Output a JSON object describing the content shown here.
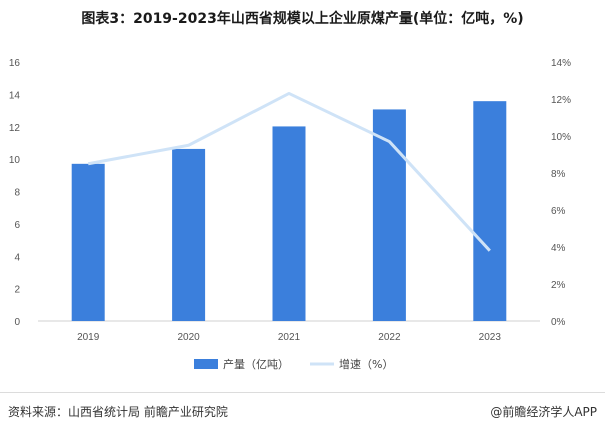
{
  "title": "图表3：2019-2023年山西省规模以上企业原煤产量(单位：亿吨，%)",
  "footer": {
    "source": "资料来源：山西省统计局 前瞻产业研究院",
    "brand": "@前瞻经济学人APP"
  },
  "colors": {
    "bar": "#3b7fdc",
    "line": "#cfe3f7"
  },
  "chart_data": {
    "type": "bar",
    "categories": [
      "2019",
      "2020",
      "2021",
      "2022",
      "2023"
    ],
    "series": [
      {
        "name": "产量（亿吨）",
        "type": "bar",
        "axis": "left",
        "values": [
          9.71,
          10.63,
          12.02,
          13.07,
          13.58
        ]
      },
      {
        "name": "增速（%）",
        "type": "line",
        "axis": "right",
        "values": [
          8.5,
          9.5,
          12.3,
          9.7,
          3.8
        ]
      }
    ],
    "y_left": {
      "min": 0,
      "max": 16,
      "ticks": [
        "0",
        "2",
        "4",
        "6",
        "8",
        "10",
        "12",
        "14",
        "16"
      ]
    },
    "y_right": {
      "min": 0,
      "max": 14,
      "ticks": [
        "0%",
        "2%",
        "4%",
        "6%",
        "8%",
        "10%",
        "12%",
        "14%"
      ]
    },
    "legend_position": "bottom-center"
  }
}
